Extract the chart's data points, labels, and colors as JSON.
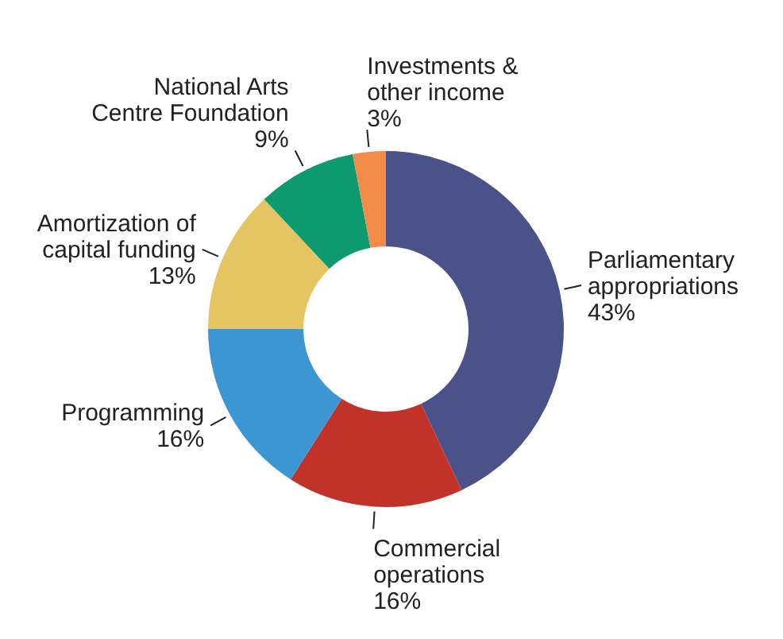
{
  "chart_data": {
    "type": "donut",
    "categories": [
      "Parliamentary appropriations",
      "Commercial operations",
      "Programming",
      "Amortization of capital funding",
      "National Arts Centre Foundation",
      "Investments & other income"
    ],
    "values": [
      43,
      16,
      16,
      13,
      9,
      3
    ],
    "colors": [
      "#4b5189",
      "#c13228",
      "#3b96d1",
      "#e5c462",
      "#0e9a6f",
      "#f28b48"
    ],
    "value_labels": [
      "43%",
      "16%",
      "16%",
      "13%",
      "9%",
      "3%"
    ]
  }
}
